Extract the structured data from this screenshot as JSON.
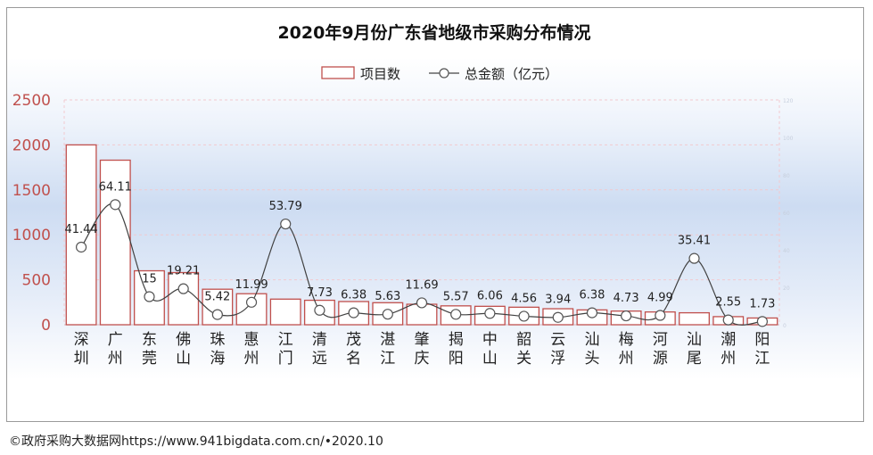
{
  "chart_data": {
    "type": "bar",
    "title": "2020年9月份广东省地级市采购分布情况",
    "categories": [
      "深圳",
      "广州",
      "东莞",
      "佛山",
      "珠海",
      "惠州",
      "江门",
      "清远",
      "茂名",
      "湛江",
      "肇庆",
      "揭阳",
      "中山",
      "韶关",
      "云浮",
      "汕头",
      "梅州",
      "河源",
      "汕尾",
      "潮州",
      "阳江"
    ],
    "series": [
      {
        "name": "项目数",
        "kind": "bar",
        "color": "#c0504d",
        "values": [
          2000,
          1830,
          600,
          580,
          395,
          345,
          285,
          272,
          258,
          245,
          228,
          210,
          205,
          195,
          178,
          165,
          152,
          142,
          133,
          90,
          75
        ]
      },
      {
        "name": "总金额（亿元）",
        "kind": "line",
        "color": "#404040",
        "values": [
          41.44,
          64.11,
          15,
          19.21,
          5.42,
          11.99,
          53.79,
          7.73,
          6.38,
          5.63,
          11.69,
          5.57,
          6.06,
          4.56,
          3.94,
          6.38,
          4.73,
          4.99,
          35.41,
          2.55,
          1.73
        ],
        "labels": [
          "41.44",
          "64.11",
          "15",
          "19.21",
          "5.42",
          "11.99",
          "53.79",
          "7.73",
          "6.38",
          "5.63",
          "11.69",
          "5.57",
          "6.06",
          "4.56",
          "3.94",
          "6.38",
          "4.73",
          "4.99",
          "35.41",
          "2.55",
          "1.73"
        ]
      }
    ],
    "yticks": [
      "0",
      "500",
      "1000",
      "1500",
      "2000",
      "2500"
    ],
    "ylim": [
      0,
      2500
    ],
    "y2ticks": [
      "0",
      "20",
      "40",
      "60",
      "80",
      "100",
      "120"
    ],
    "y2lim": [
      0,
      120
    ],
    "xlabel": "",
    "ylabel": "",
    "legend_position": "top-center",
    "grid": true,
    "axis_label_color": "#c0504d"
  },
  "footer": {
    "text": "©政府采购大数据网https://www.941bigdata.com.cn/•2020.10"
  }
}
